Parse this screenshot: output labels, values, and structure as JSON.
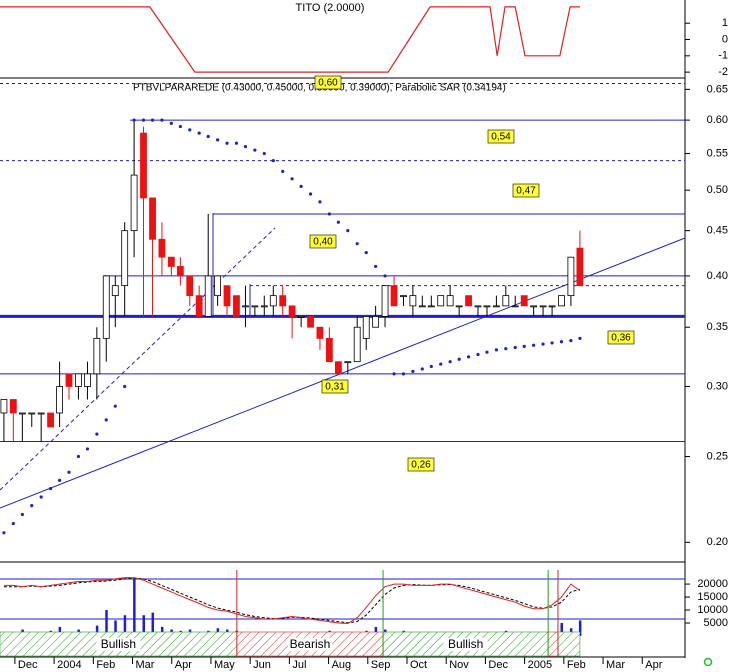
{
  "chart_data": [
    {
      "type": "line",
      "title": "TITO (2.0000)",
      "color": "#e02020",
      "x": [
        -0.38,
        3.44,
        4.59,
        9.52,
        10.59,
        12.12,
        12.3,
        12.5,
        12.76,
        13.01,
        13.9,
        14.16,
        14.41
      ],
      "values": [
        2,
        2,
        -2,
        -2,
        2,
        2,
        -1,
        2,
        2,
        -1,
        -1,
        2,
        2
      ],
      "ylim": [
        -2.36,
        2.3
      ],
      "yticks": [
        -2,
        -1,
        0,
        1
      ]
    },
    {
      "type": "candlestick",
      "title": "PTBVLPARAREDE (0.43000, 0.45000, 0.39000, 0.39000), Parabolic SAR (0.34194)",
      "log_scale": true,
      "ylim": [
        0.19,
        0.666
      ],
      "yticks": [
        {
          "value": 0.2,
          "label": "0.20"
        },
        0.25,
        {
          "value": 0.3,
          "label": "0.30"
        },
        0.35,
        {
          "value": 0.4,
          "label": "0.40"
        },
        0.45,
        {
          "value": 0.5,
          "label": "0.50"
        },
        0.55,
        {
          "value": 0.6,
          "label": "0.60"
        },
        0.65
      ],
      "up_color": "#ffffff",
      "down_color": "#ee1111",
      "x": [
        -0.28,
        -0.04,
        0.19,
        0.43,
        0.67,
        0.91,
        1.14,
        1.38,
        1.62,
        1.85,
        2.09,
        2.33,
        2.56,
        2.8,
        3.04,
        3.28,
        3.51,
        3.75,
        3.99,
        4.22,
        4.46,
        4.7,
        4.93,
        5.17,
        5.41,
        5.65,
        5.88,
        6.12,
        6.36,
        6.59,
        6.83,
        7.07,
        7.3,
        7.54,
        7.78,
        8.02,
        8.25,
        8.49,
        8.73,
        8.96,
        9.2,
        9.44,
        9.67,
        9.91,
        10.15,
        10.39,
        10.62,
        10.86,
        11.1,
        11.33,
        11.57,
        11.81,
        12.04,
        12.28,
        12.52,
        12.76,
        12.99,
        13.23,
        13.47,
        13.7,
        13.94,
        14.18,
        14.41
      ],
      "open": [
        0.28,
        0.29,
        0.28,
        0.28,
        0.28,
        0.28,
        0.28,
        0.31,
        0.3,
        0.3,
        0.31,
        0.34,
        0.38,
        0.39,
        0.45,
        0.58,
        0.49,
        0.44,
        0.42,
        0.41,
        0.4,
        0.38,
        0.36,
        0.38,
        0.39,
        0.38,
        0.37,
        0.37,
        0.37,
        0.37,
        0.38,
        0.37,
        0.36,
        0.36,
        0.35,
        0.34,
        0.32,
        0.32,
        0.32,
        0.34,
        0.35,
        0.36,
        0.39,
        0.38,
        0.37,
        0.37,
        0.37,
        0.37,
        0.37,
        0.37,
        0.38,
        0.37,
        0.37,
        0.37,
        0.37,
        0.37,
        0.38,
        0.37,
        0.37,
        0.37,
        0.37,
        0.38,
        0.43
      ],
      "high": [
        0.29,
        0.29,
        0.28,
        0.28,
        0.28,
        0.28,
        0.32,
        0.31,
        0.31,
        0.32,
        0.35,
        0.4,
        0.4,
        0.46,
        0.6,
        0.59,
        0.49,
        0.46,
        0.42,
        0.42,
        0.4,
        0.39,
        0.47,
        0.4,
        0.39,
        0.38,
        0.39,
        0.37,
        0.38,
        0.39,
        0.39,
        0.37,
        0.36,
        0.36,
        0.35,
        0.35,
        0.32,
        0.32,
        0.36,
        0.36,
        0.37,
        0.39,
        0.4,
        0.38,
        0.39,
        0.38,
        0.38,
        0.38,
        0.39,
        0.37,
        0.38,
        0.37,
        0.37,
        0.38,
        0.39,
        0.38,
        0.38,
        0.37,
        0.37,
        0.37,
        0.38,
        0.42,
        0.45
      ],
      "low": [
        0.26,
        0.26,
        0.26,
        0.27,
        0.26,
        0.27,
        0.27,
        0.29,
        0.29,
        0.29,
        0.29,
        0.32,
        0.35,
        0.36,
        0.42,
        0.36,
        0.36,
        0.4,
        0.4,
        0.39,
        0.37,
        0.36,
        0.36,
        0.37,
        0.36,
        0.36,
        0.35,
        0.36,
        0.36,
        0.36,
        0.36,
        0.34,
        0.35,
        0.35,
        0.33,
        0.32,
        0.31,
        0.31,
        0.32,
        0.33,
        0.35,
        0.35,
        0.37,
        0.37,
        0.36,
        0.37,
        0.37,
        0.37,
        0.37,
        0.36,
        0.37,
        0.36,
        0.36,
        0.37,
        0.37,
        0.37,
        0.37,
        0.36,
        0.36,
        0.36,
        0.37,
        0.37,
        0.39
      ],
      "close": [
        0.29,
        0.28,
        0.28,
        0.28,
        0.28,
        0.27,
        0.3,
        0.3,
        0.31,
        0.31,
        0.34,
        0.4,
        0.39,
        0.45,
        0.52,
        0.49,
        0.44,
        0.42,
        0.41,
        0.4,
        0.38,
        0.36,
        0.4,
        0.4,
        0.37,
        0.36,
        0.37,
        0.37,
        0.37,
        0.38,
        0.37,
        0.36,
        0.36,
        0.35,
        0.34,
        0.32,
        0.31,
        0.32,
        0.35,
        0.36,
        0.36,
        0.39,
        0.37,
        0.38,
        0.38,
        0.37,
        0.37,
        0.38,
        0.38,
        0.37,
        0.37,
        0.37,
        0.37,
        0.37,
        0.38,
        0.37,
        0.37,
        0.37,
        0.37,
        0.37,
        0.38,
        0.42,
        0.39
      ],
      "sar": {
        "color": "#1f1fd0",
        "values": [
          0.205,
          0.21,
          0.215,
          0.22,
          0.225,
          0.23,
          0.235,
          0.24,
          0.25,
          0.255,
          0.265,
          0.275,
          0.285,
          0.3,
          0.6,
          0.6,
          0.6,
          0.6,
          0.595,
          0.59,
          0.585,
          0.58,
          0.575,
          0.57,
          0.565,
          0.565,
          0.56,
          0.555,
          0.55,
          0.54,
          0.525,
          0.515,
          0.505,
          0.495,
          0.485,
          0.47,
          0.46,
          0.45,
          0.435,
          0.425,
          0.41,
          0.4,
          0.31,
          0.31,
          0.312,
          0.314,
          0.316,
          0.318,
          0.32,
          0.322,
          0.324,
          0.326,
          0.328,
          0.33,
          0.331,
          0.332,
          0.333,
          0.334,
          0.335,
          0.336,
          0.337,
          0.338,
          0.34
        ]
      },
      "levels": [
        {
          "value": 0.66,
          "style": "dashed"
        },
        {
          "value": 0.6,
          "label": "0,60",
          "style": "solid"
        },
        {
          "value": 0.54,
          "label": "0,54",
          "style": "dashed"
        },
        {
          "value": 0.47,
          "label": "0,47",
          "style": "solid"
        },
        {
          "value": 0.4,
          "label": "0,40",
          "style": "solid"
        },
        {
          "value": 0.39,
          "style": "dashed"
        },
        {
          "value": 0.36,
          "label": "0,36",
          "style": "solid",
          "weight": 3
        },
        {
          "value": 0.31,
          "label": "0,31",
          "style": "solid"
        },
        {
          "value": 0.26,
          "label": "0,26",
          "style": "solid"
        }
      ],
      "level_color": "#1f1fd0",
      "label_color": "#ffff33"
    },
    {
      "type": "bar",
      "ylim": [
        0,
        28500
      ],
      "yticks": [
        5000,
        10000,
        15000,
        20000
      ],
      "x": [
        -0.28,
        -0.04,
        0.19,
        0.43,
        0.67,
        0.91,
        1.14,
        1.38,
        1.62,
        1.85,
        2.09,
        2.33,
        2.56,
        2.8,
        3.04,
        3.28,
        3.51,
        3.75,
        3.99,
        4.22,
        4.46,
        4.7,
        4.93,
        5.17,
        5.41,
        5.65,
        5.88,
        6.12,
        6.36,
        6.59,
        6.83,
        7.07,
        7.3,
        7.54,
        7.78,
        8.02,
        8.25,
        8.49,
        8.73,
        8.96,
        9.2,
        9.44,
        9.67,
        9.91,
        10.15,
        10.39,
        10.62,
        10.86,
        11.1,
        11.33,
        11.57,
        11.81,
        12.04,
        12.28,
        12.52,
        12.76,
        12.99,
        13.23,
        13.47,
        13.7,
        13.94,
        14.18,
        14.41
      ],
      "series": [
        {
          "type": "bar",
          "color": "#1f1fd0",
          "values": [
            1500,
            1000,
            2500,
            800,
            1200,
            2000,
            3500,
            1500,
            2500,
            1500,
            4000,
            10000,
            6000,
            8000,
            22000,
            8000,
            9000,
            3500,
            2500,
            2000,
            2500,
            1500,
            2000,
            3000,
            2500,
            2000,
            1000,
            1500,
            1200,
            1000,
            1500,
            1000,
            800,
            1200,
            1500,
            2000,
            1000,
            1500,
            800,
            2000,
            3500,
            2500,
            1500,
            2000,
            1000,
            1200,
            1000,
            1500,
            1200,
            1000,
            800,
            1200,
            1000,
            800,
            2000,
            1500,
            1000,
            800,
            1500,
            1000,
            5000,
            3000,
            6000
          ]
        },
        {
          "type": "line",
          "color": "#000000",
          "dashed": true,
          "values": [
            19000,
            19000,
            19000,
            19200,
            19000,
            19200,
            19500,
            20000,
            20500,
            20800,
            21000,
            21200,
            21500,
            22000,
            22300,
            22000,
            21000,
            19500,
            18000,
            16500,
            15000,
            13500,
            12000,
            10800,
            9900,
            9200,
            8200,
            7500,
            7000,
            6700,
            6800,
            7200,
            7200,
            6900,
            6500,
            6000,
            5500,
            5100,
            5600,
            8000,
            12000,
            16000,
            18500,
            19500,
            19800,
            19600,
            19500,
            19700,
            19800,
            19500,
            18700,
            17700,
            16700,
            15700,
            14700,
            13700,
            12500,
            11200,
            10700,
            11200,
            13000,
            17000,
            18000
          ]
        },
        {
          "type": "line",
          "color": "#e02020",
          "values": [
            19500,
            19500,
            19000,
            19500,
            19000,
            19500,
            20000,
            20500,
            21000,
            21000,
            21500,
            21500,
            22000,
            22500,
            22500,
            21500,
            20000,
            18500,
            17000,
            15500,
            14000,
            12500,
            11000,
            10000,
            9500,
            8500,
            7500,
            7000,
            6500,
            6500,
            7000,
            7500,
            7000,
            6500,
            6000,
            5500,
            5000,
            4800,
            7000,
            11000,
            15500,
            19000,
            20000,
            20000,
            19500,
            19500,
            19500,
            20000,
            20000,
            19000,
            18000,
            17000,
            16000,
            15000,
            14000,
            13000,
            11500,
            10500,
            10500,
            12000,
            15000,
            20000,
            17500
          ]
        }
      ],
      "zones": [
        {
          "label": "Bullish",
          "start": -0.38,
          "end": 5.66,
          "color": "#20a020"
        },
        {
          "label": "Bearish",
          "start": 5.66,
          "end": 9.39,
          "color": "#e02020"
        },
        {
          "label": "Bullish",
          "start": 9.39,
          "end": 13.6,
          "color": "#20a020"
        },
        {
          "start": 13.6,
          "end": 13.85,
          "color": "#e02020"
        },
        {
          "start": 13.85,
          "end": 14.41,
          "color": "#20a020"
        }
      ],
      "signals": [
        {
          "x": 5.66,
          "color": "#e02020"
        },
        {
          "x": 9.39,
          "color": "#20a020"
        },
        {
          "x": 13.6,
          "color": "#20a020"
        },
        {
          "x": 13.85,
          "color": "#e02020"
        }
      ],
      "xlim": [
        -0.38,
        17.09
      ],
      "xticks": [
        {
          "value": 0,
          "label": "Dec"
        },
        {
          "value": 1,
          "label": "2004"
        },
        {
          "value": 2,
          "label": "Feb"
        },
        {
          "value": 3,
          "label": "Mar"
        },
        {
          "value": 4,
          "label": "Apr"
        },
        {
          "value": 5,
          "label": "May"
        },
        {
          "value": 6,
          "label": "Jun"
        },
        {
          "value": 7,
          "label": "Jul"
        },
        {
          "value": 8,
          "label": "Aug"
        },
        {
          "value": 9,
          "label": "Sep"
        },
        {
          "value": 10,
          "label": "Oct"
        },
        {
          "value": 11,
          "label": "Nov"
        },
        {
          "value": 12,
          "label": "Dec"
        },
        {
          "value": 13,
          "label": "2005"
        },
        {
          "value": 14,
          "label": "Feb"
        },
        {
          "value": 15,
          "label": "Mar"
        },
        {
          "value": 16,
          "label": "Apr"
        }
      ]
    }
  ]
}
